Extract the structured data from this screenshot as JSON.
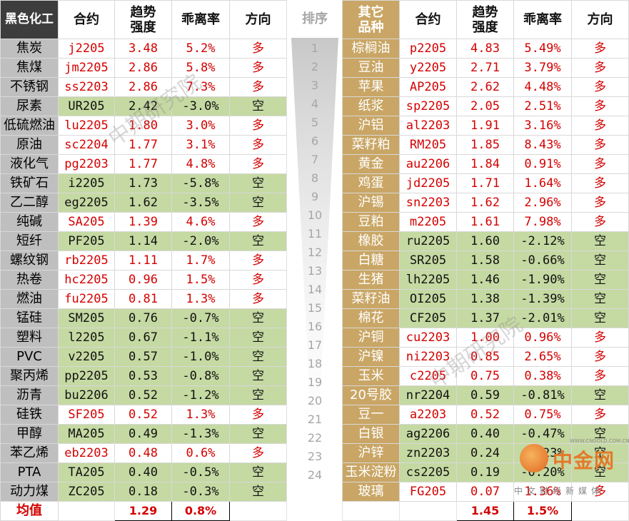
{
  "left": {
    "headers": {
      "category": "黑色化工",
      "contract": "合约",
      "strength": "趋势\n强度",
      "deviation": "乖离率",
      "direction": "方向"
    },
    "rows": [
      {
        "name": "焦炭",
        "contract": "j2205",
        "strength": "3.48",
        "deviation": "5.2%",
        "direction": "多"
      },
      {
        "name": "焦煤",
        "contract": "jm2205",
        "strength": "2.86",
        "deviation": "5.8%",
        "direction": "多"
      },
      {
        "name": "不锈钢",
        "contract": "ss2203",
        "strength": "2.86",
        "deviation": "7.3%",
        "direction": "多"
      },
      {
        "name": "尿素",
        "contract": "UR205",
        "strength": "2.42",
        "deviation": "-3.0%",
        "direction": "空"
      },
      {
        "name": "低硫燃油",
        "contract": "lu2205",
        "strength": "1.80",
        "deviation": "3.0%",
        "direction": "多"
      },
      {
        "name": "原油",
        "contract": "sc2204",
        "strength": "1.77",
        "deviation": "3.1%",
        "direction": "多"
      },
      {
        "name": "液化气",
        "contract": "pg2203",
        "strength": "1.77",
        "deviation": "4.8%",
        "direction": "多"
      },
      {
        "name": "铁矿石",
        "contract": "i2205",
        "strength": "1.73",
        "deviation": "-5.8%",
        "direction": "空"
      },
      {
        "name": "乙二醇",
        "contract": "eg2205",
        "strength": "1.62",
        "deviation": "-3.5%",
        "direction": "空"
      },
      {
        "name": "纯碱",
        "contract": "SA205",
        "strength": "1.39",
        "deviation": "4.6%",
        "direction": "多"
      },
      {
        "name": "短纤",
        "contract": "PF205",
        "strength": "1.14",
        "deviation": "-2.0%",
        "direction": "空"
      },
      {
        "name": "螺纹钢",
        "contract": "rb2205",
        "strength": "1.11",
        "deviation": "1.7%",
        "direction": "多"
      },
      {
        "name": "热卷",
        "contract": "hc2205",
        "strength": "0.96",
        "deviation": "1.5%",
        "direction": "多"
      },
      {
        "name": "燃油",
        "contract": "fu2205",
        "strength": "0.81",
        "deviation": "1.3%",
        "direction": "多"
      },
      {
        "name": "锰硅",
        "contract": "SM205",
        "strength": "0.76",
        "deviation": "-0.7%",
        "direction": "空"
      },
      {
        "name": "塑料",
        "contract": "l2205",
        "strength": "0.67",
        "deviation": "-1.1%",
        "direction": "空"
      },
      {
        "name": "PVC",
        "contract": "v2205",
        "strength": "0.57",
        "deviation": "-1.0%",
        "direction": "空"
      },
      {
        "name": "聚丙烯",
        "contract": "pp2205",
        "strength": "0.53",
        "deviation": "-0.8%",
        "direction": "空"
      },
      {
        "name": "沥青",
        "contract": "bu2206",
        "strength": "0.52",
        "deviation": "-1.2%",
        "direction": "空"
      },
      {
        "name": "硅铁",
        "contract": "SF205",
        "strength": "0.52",
        "deviation": "1.3%",
        "direction": "多"
      },
      {
        "name": "甲醇",
        "contract": "MA205",
        "strength": "0.49",
        "deviation": "-1.3%",
        "direction": "空"
      },
      {
        "name": "苯乙烯",
        "contract": "eb2203",
        "strength": "0.48",
        "deviation": "0.6%",
        "direction": "多"
      },
      {
        "name": "PTA",
        "contract": "TA205",
        "strength": "0.40",
        "deviation": "-0.5%",
        "direction": "空"
      },
      {
        "name": "动力煤",
        "contract": "ZC205",
        "strength": "0.18",
        "deviation": "-0.3%",
        "direction": "空"
      }
    ],
    "average": {
      "label": "均值",
      "strength": "1.29",
      "deviation": "0.8%"
    }
  },
  "rank": {
    "header": "排序",
    "numbers": [
      "1",
      "2",
      "3",
      "4",
      "5",
      "6",
      "7",
      "8",
      "9",
      "10",
      "11",
      "12",
      "13",
      "14",
      "15",
      "16",
      "17",
      "18",
      "19",
      "20",
      "21",
      "22",
      "23",
      "24"
    ]
  },
  "right": {
    "headers": {
      "category": "其它\n品种",
      "contract": "合约",
      "strength": "趋势\n强度",
      "deviation": "乖离率",
      "direction": "方向"
    },
    "rows": [
      {
        "name": "棕榈油",
        "contract": "p2205",
        "strength": "4.83",
        "deviation": "5.49%",
        "direction": "多"
      },
      {
        "name": "豆油",
        "contract": "y2205",
        "strength": "2.71",
        "deviation": "3.79%",
        "direction": "多"
      },
      {
        "name": "苹果",
        "contract": "AP205",
        "strength": "2.62",
        "deviation": "4.48%",
        "direction": "多"
      },
      {
        "name": "纸浆",
        "contract": "sp2205",
        "strength": "2.05",
        "deviation": "2.51%",
        "direction": "多"
      },
      {
        "name": "沪铝",
        "contract": "al2203",
        "strength": "1.91",
        "deviation": "3.16%",
        "direction": "多"
      },
      {
        "name": "菜籽粕",
        "contract": "RM205",
        "strength": "1.85",
        "deviation": "8.43%",
        "direction": "多"
      },
      {
        "name": "黄金",
        "contract": "au2206",
        "strength": "1.84",
        "deviation": "0.91%",
        "direction": "多"
      },
      {
        "name": "鸡蛋",
        "contract": "jd2205",
        "strength": "1.71",
        "deviation": "1.64%",
        "direction": "多"
      },
      {
        "name": "沪锡",
        "contract": "sn2203",
        "strength": "1.62",
        "deviation": "2.96%",
        "direction": "多"
      },
      {
        "name": "豆粕",
        "contract": "m2205",
        "strength": "1.61",
        "deviation": "7.98%",
        "direction": "多"
      },
      {
        "name": "橡胶",
        "contract": "ru2205",
        "strength": "1.60",
        "deviation": "-2.12%",
        "direction": "空"
      },
      {
        "name": "白糖",
        "contract": "SR205",
        "strength": "1.58",
        "deviation": "-0.66%",
        "direction": "空"
      },
      {
        "name": "生猪",
        "contract": "lh2205",
        "strength": "1.46",
        "deviation": "-1.90%",
        "direction": "空"
      },
      {
        "name": "菜籽油",
        "contract": "OI205",
        "strength": "1.38",
        "deviation": "-1.39%",
        "direction": "空"
      },
      {
        "name": "棉花",
        "contract": "CF205",
        "strength": "1.37",
        "deviation": "-2.01%",
        "direction": "空"
      },
      {
        "name": "沪铜",
        "contract": "cu2203",
        "strength": "1.00",
        "deviation": "0.96%",
        "direction": "多"
      },
      {
        "name": "沪镍",
        "contract": "ni2203",
        "strength": "0.85",
        "deviation": "2.65%",
        "direction": "多"
      },
      {
        "name": "玉米",
        "contract": "c2205",
        "strength": "0.75",
        "deviation": "0.38%",
        "direction": "多"
      },
      {
        "name": "20号胶",
        "contract": "nr2204",
        "strength": "0.59",
        "deviation": "-0.81%",
        "direction": "空"
      },
      {
        "name": "豆一",
        "contract": "a2203",
        "strength": "0.52",
        "deviation": "0.75%",
        "direction": "多"
      },
      {
        "name": "白银",
        "contract": "ag2206",
        "strength": "0.40",
        "deviation": "-0.47%",
        "direction": "空"
      },
      {
        "name": "沪锌",
        "contract": "zn2203",
        "strength": "0.24",
        "deviation": "-0.23%",
        "direction": "空"
      },
      {
        "name": "玉米淀粉",
        "contract": "cs2205",
        "strength": "0.19",
        "deviation": "-0.20%",
        "direction": "空"
      },
      {
        "name": "玻璃",
        "contract": "FG205",
        "strength": "0.07",
        "deviation": "1.36%",
        "direction": "多"
      }
    ],
    "average": {
      "strength": "1.45",
      "deviation": "1.5%"
    }
  },
  "watermark": {
    "text": "中期研究院"
  },
  "logo": {
    "name": "中金网",
    "url": "WWW.CNGOLD.COM.CN",
    "subtitle": "中文财经新媒体"
  },
  "colors": {
    "long": "#d40000",
    "short": "#111111",
    "short_bg": "#c5d9a2",
    "left_header": "#3d3d3d",
    "right_header": "#c9a665"
  }
}
